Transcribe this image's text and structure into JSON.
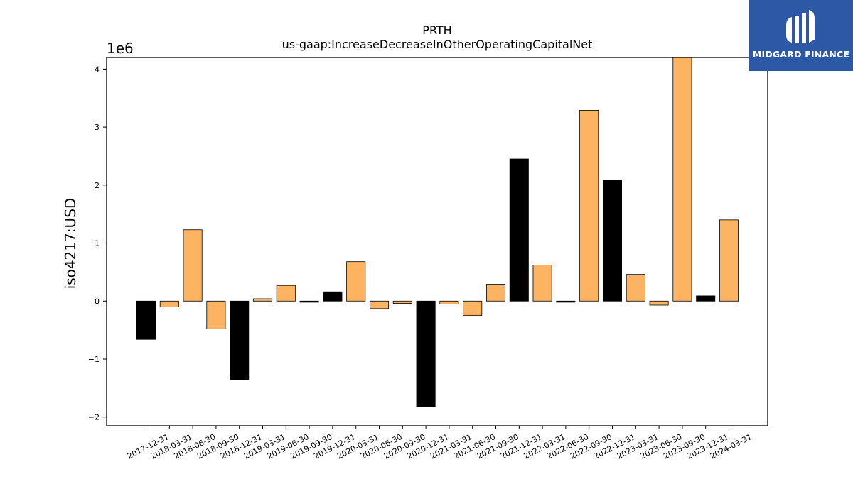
{
  "logo": {
    "text": "MIDGARD FINANCE",
    "background": "#2d58a6"
  },
  "chart_data": {
    "type": "bar",
    "title": "PRTH",
    "subtitle": "us-gaap:IncreaseDecreaseInOtherOperatingCapitalNet",
    "ylabel": "iso4217:USD",
    "xlabel": "",
    "y_offset_label": "1e6",
    "ylim": [
      -2.15,
      4.2
    ],
    "yticks": [
      -2,
      -1,
      0,
      1,
      2,
      3,
      4
    ],
    "ytick_labels": [
      "−2",
      "−1",
      "0",
      "1",
      "2",
      "3",
      "4"
    ],
    "grid": false,
    "colors": {
      "orange": "#fdb462",
      "black": "#000000"
    },
    "categories": [
      "2017-12-31",
      "2018-03-31",
      "2018-06-30",
      "2018-09-30",
      "2018-12-31",
      "2019-03-31",
      "2019-06-30",
      "2019-09-30",
      "2019-12-31",
      "2020-03-31",
      "2020-06-30",
      "2020-09-30",
      "2020-12-31",
      "2021-03-31",
      "2021-06-30",
      "2021-09-30",
      "2021-12-31",
      "2022-03-31",
      "2022-06-30",
      "2022-09-30",
      "2022-12-31",
      "2023-03-31",
      "2023-06-30",
      "2023-09-30",
      "2023-12-31",
      "2024-03-31"
    ],
    "values": [
      -0.66,
      -0.1,
      1.23,
      -0.48,
      -1.35,
      0.04,
      0.27,
      -0.02,
      0.16,
      0.68,
      -0.13,
      -0.04,
      -1.82,
      -0.05,
      -0.25,
      0.29,
      2.45,
      0.62,
      -0.02,
      3.29,
      2.09,
      0.46,
      -0.07,
      4.3,
      0.09,
      1.4
    ],
    "bar_colors": [
      "black",
      "orange",
      "orange",
      "orange",
      "black",
      "orange",
      "orange",
      "black",
      "black",
      "orange",
      "orange",
      "orange",
      "black",
      "orange",
      "orange",
      "orange",
      "black",
      "orange",
      "black",
      "orange",
      "black",
      "orange",
      "orange",
      "orange",
      "black",
      "orange"
    ]
  }
}
